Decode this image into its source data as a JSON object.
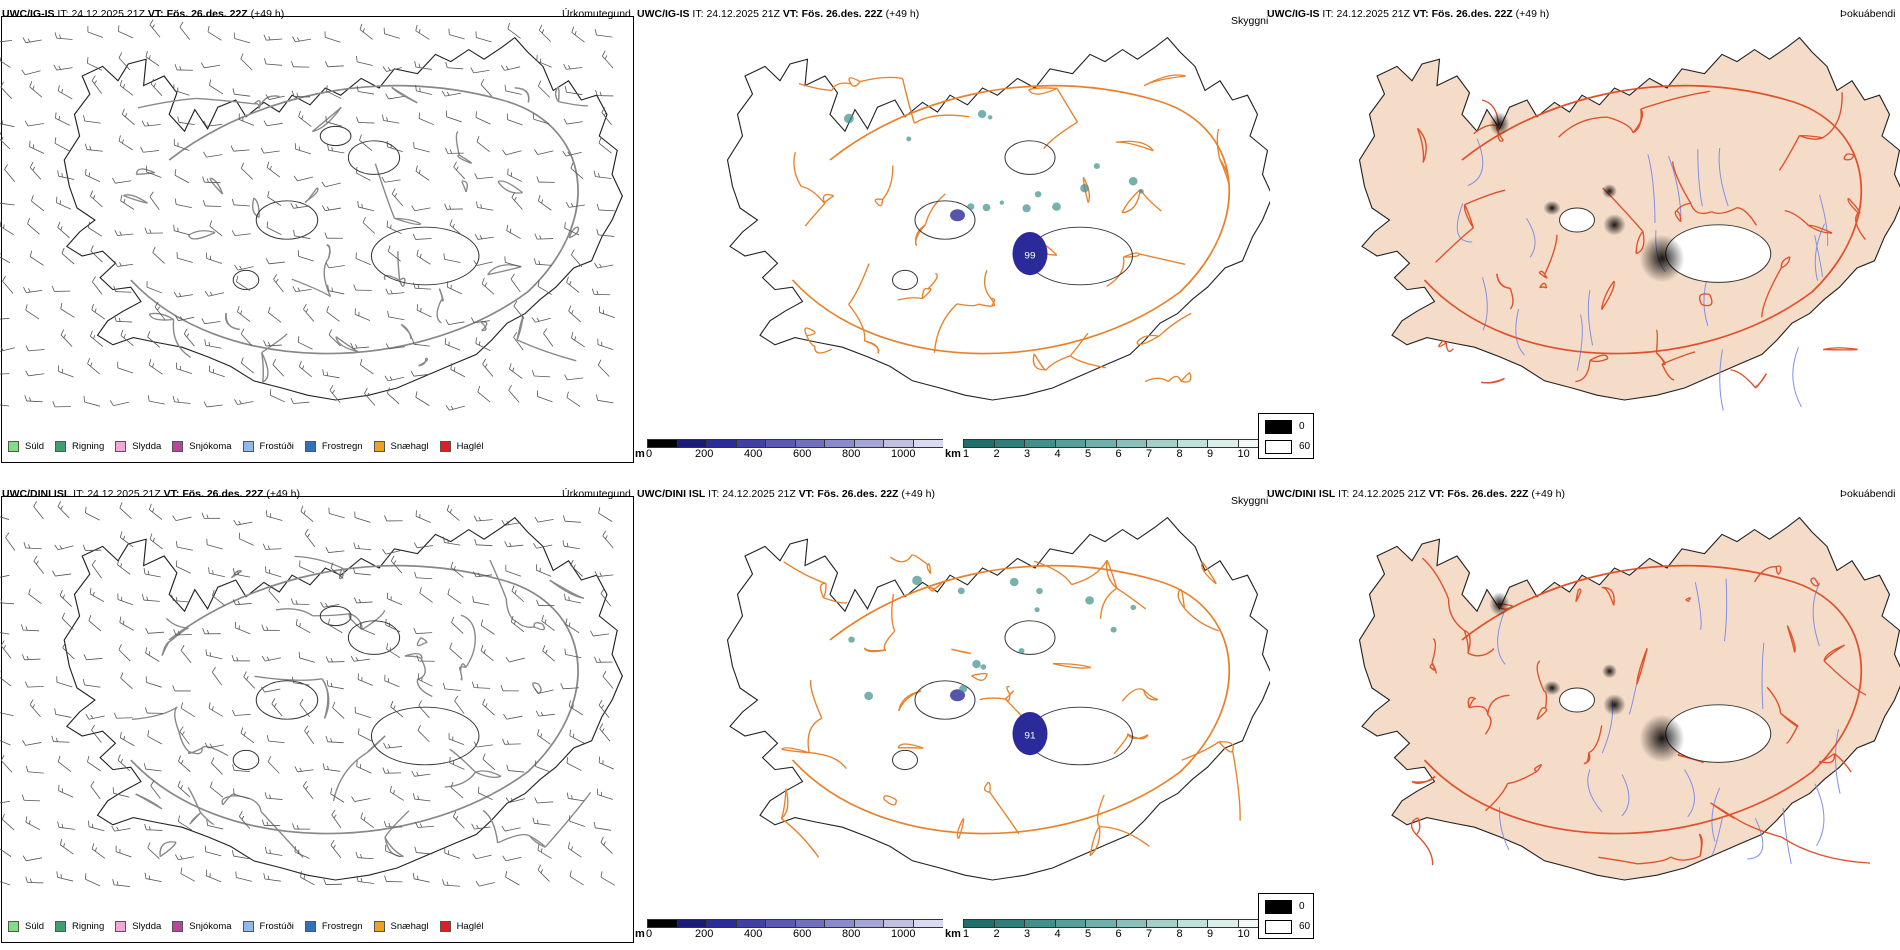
{
  "rows": [
    {
      "model": "UWC/IG-IS",
      "it_label": "IT:",
      "it_value": "24.12.2025 21Z",
      "vt_label": "VT:",
      "vt_value": "Fös. 26.des. 22Z",
      "lead": "(+49 h)",
      "max_label": "99"
    },
    {
      "model": "UWC/DINI ISL",
      "it_label": "IT:",
      "it_value": "24.12.2025 21Z",
      "vt_label": "VT:",
      "vt_value": "Fös. 26.des. 22Z",
      "lead": "(+49 h)",
      "max_label": "91"
    }
  ],
  "panel_titles": {
    "precip": "Úrkomutegund",
    "visibility": "Skyggni",
    "fog": "Þokuábendi"
  },
  "precip_legend": [
    {
      "label": "Súld",
      "color": "#7fe07f"
    },
    {
      "label": "Rigning",
      "color": "#3f9f6f"
    },
    {
      "label": "Slydda",
      "color": "#f0a8d8"
    },
    {
      "label": "Snjókoma",
      "color": "#b8479a"
    },
    {
      "label": "Frostúði",
      "color": "#8fb9f0"
    },
    {
      "label": "Frostregn",
      "color": "#2f70c0"
    },
    {
      "label": "Snæhagl",
      "color": "#f0a020"
    },
    {
      "label": "Haglél",
      "color": "#e02020"
    }
  ],
  "height_bar": {
    "unit": "m",
    "ticks": [
      "0",
      "200",
      "400",
      "600",
      "800",
      "1000"
    ],
    "colors": [
      "#000000",
      "#1a1a7a",
      "#2b2b9c",
      "#4040a8",
      "#5a5ab4",
      "#7070c0",
      "#8a8acc",
      "#a5a5d8",
      "#c0c0e4",
      "#dadaf0"
    ]
  },
  "km_bar": {
    "unit": "km",
    "ticks": [
      "1",
      "2",
      "3",
      "4",
      "5",
      "6",
      "7",
      "8",
      "9",
      "10"
    ],
    "colors": [
      "#1f6f6a",
      "#2f7f7a",
      "#3f8f8a",
      "#55a09a",
      "#6fb0aa",
      "#8ac0ba",
      "#a5d0ca",
      "#c0e0da",
      "#daeeea",
      "#f2faf8"
    ]
  },
  "fog_legend": [
    {
      "label": "0",
      "color": "#000000"
    },
    {
      "label": "60",
      "color": "#ffffff"
    }
  ],
  "colors": {
    "road": "#e8822a",
    "road_fog": "#e0502a",
    "land_fog": "#f4dcc8",
    "river": "#8090e8",
    "coast": "#222222",
    "barb": "#555555",
    "low_vis": "#2a2a9a"
  }
}
